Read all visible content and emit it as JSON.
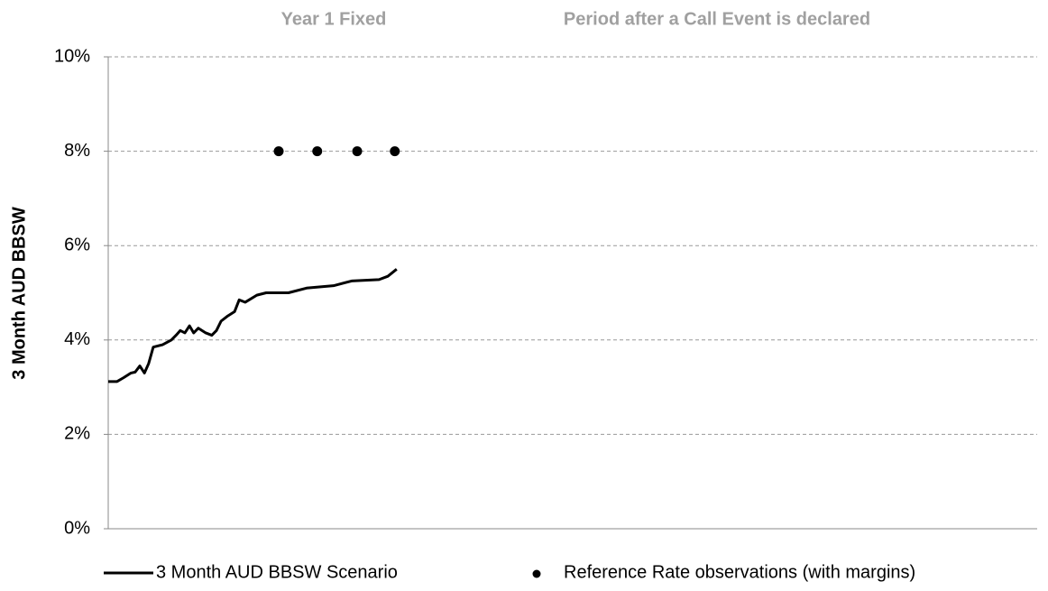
{
  "chart_data": {
    "type": "line",
    "y_label": "3 Month AUD BBSW",
    "annotations": [
      "Year 1 Fixed",
      "Period after a Call Event is declared"
    ],
    "xlim": [
      0,
      2
    ],
    "ylim": [
      0,
      10
    ],
    "yticks": [
      {
        "value": 0,
        "label": "0%"
      },
      {
        "value": 2,
        "label": "2%"
      },
      {
        "value": 4,
        "label": "4%"
      },
      {
        "value": 6,
        "label": "6%"
      },
      {
        "value": 8,
        "label": "8%"
      },
      {
        "value": 10,
        "label": "10%"
      }
    ],
    "grid": true,
    "legend": "bottom",
    "series": [
      {
        "name": "3 Month AUD BBSW Scenario",
        "type": "line",
        "color": "#000000",
        "x": [
          0,
          0.019,
          0.033,
          0.049,
          0.058,
          0.068,
          0.078,
          0.087,
          0.097,
          0.117,
          0.136,
          0.146,
          0.155,
          0.165,
          0.175,
          0.184,
          0.194,
          0.21,
          0.223,
          0.233,
          0.243,
          0.256,
          0.272,
          0.282,
          0.295,
          0.32,
          0.34,
          0.388,
          0.427,
          0.485,
          0.524,
          0.583,
          0.602,
          0.621
        ],
        "values": [
          3.12,
          3.12,
          3.2,
          3.3,
          3.32,
          3.45,
          3.3,
          3.5,
          3.85,
          3.9,
          4.0,
          4.1,
          4.2,
          4.15,
          4.3,
          4.15,
          4.25,
          4.15,
          4.1,
          4.2,
          4.4,
          4.5,
          4.6,
          4.85,
          4.8,
          4.95,
          5.0,
          5.0,
          5.1,
          5.15,
          5.25,
          5.28,
          5.35,
          5.5
        ]
      },
      {
        "name": "Reference Rate observations (with margins)",
        "type": "scatter",
        "color": "#000000",
        "x": [
          0.367,
          0.45,
          0.536,
          0.617
        ],
        "values": [
          8,
          8,
          8,
          8
        ]
      }
    ]
  }
}
